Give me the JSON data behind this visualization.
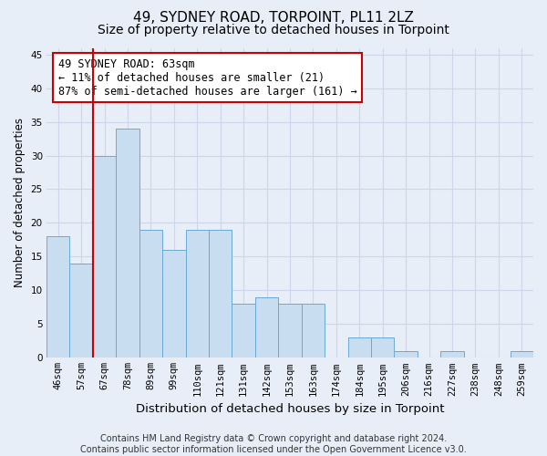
{
  "title": "49, SYDNEY ROAD, TORPOINT, PL11 2LZ",
  "subtitle": "Size of property relative to detached houses in Torpoint",
  "xlabel": "Distribution of detached houses by size in Torpoint",
  "ylabel": "Number of detached properties",
  "bar_labels": [
    "46sqm",
    "57sqm",
    "67sqm",
    "78sqm",
    "89sqm",
    "99sqm",
    "110sqm",
    "121sqm",
    "131sqm",
    "142sqm",
    "153sqm",
    "163sqm",
    "174sqm",
    "184sqm",
    "195sqm",
    "206sqm",
    "216sqm",
    "227sqm",
    "238sqm",
    "248sqm",
    "259sqm"
  ],
  "bar_values": [
    18,
    14,
    30,
    34,
    19,
    16,
    19,
    19,
    8,
    9,
    8,
    8,
    0,
    3,
    3,
    1,
    0,
    1,
    0,
    0,
    1
  ],
  "bar_color": "#c9ddf0",
  "bar_edge_color": "#6aaad4",
  "grid_color": "#ccd6e8",
  "background_color": "#e8eef8",
  "vline_x_idx": 1,
  "vline_color": "#cc0000",
  "annotation_text": "49 SYDNEY ROAD: 63sqm\n← 11% of detached houses are smaller (21)\n87% of semi-detached houses are larger (161) →",
  "annotation_box_color": "#ffffff",
  "annotation_box_edge_color": "#cc0000",
  "ylim": [
    0,
    46
  ],
  "yticks": [
    0,
    5,
    10,
    15,
    20,
    25,
    30,
    35,
    40,
    45
  ],
  "footer_text": "Contains HM Land Registry data © Crown copyright and database right 2024.\nContains public sector information licensed under the Open Government Licence v3.0.",
  "title_fontsize": 11,
  "subtitle_fontsize": 10,
  "xlabel_fontsize": 9.5,
  "ylabel_fontsize": 8.5,
  "tick_fontsize": 7.5,
  "annotation_fontsize": 8.5,
  "footer_fontsize": 7
}
